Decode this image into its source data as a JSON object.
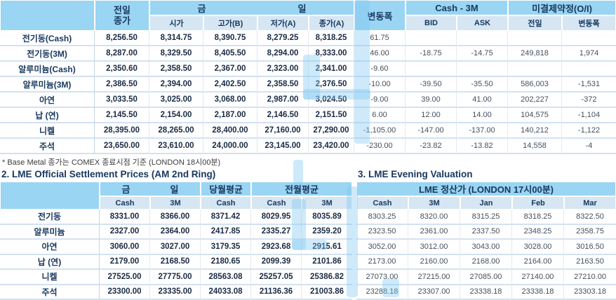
{
  "colors": {
    "header_blue": "#9AD5F3",
    "subheader_blue": "#D6E6F2",
    "navy_text": "#17375E"
  },
  "top_table": {
    "col_prev": {
      "line1": "전일",
      "line2": "종가"
    },
    "col_today": {
      "left": "금",
      "right": "일"
    },
    "sub_today": [
      "시가",
      "고가(B)",
      "저가(A)",
      "종가(A)"
    ],
    "col_change": "변동폭",
    "col_cash3m": "Cash - 3M",
    "sub_cash3m": [
      "BID",
      "ASK"
    ],
    "col_oi": "미결제약정(O/I)",
    "sub_oi": [
      "전일",
      "변동폭"
    ],
    "rows": [
      [
        "전기동(Cash)",
        "8,256.50",
        "8,314.75",
        "8,390.75",
        "8,279.25",
        "8,318.25",
        "61.75",
        "",
        "",
        "",
        ""
      ],
      [
        "전기동(3M)",
        "8,287.00",
        "8,329.50",
        "8,405.50",
        "8,294.00",
        "8,333.00",
        "46.00",
        "-18.75",
        "-14.75",
        "249,818",
        "1,974"
      ],
      [
        "알루미늄(Cash)",
        "2,350.60",
        "2,358.50",
        "2,367.00",
        "2,323.00",
        "2,341.00",
        "-9.60",
        "",
        "",
        "",
        ""
      ],
      [
        "알루미늄(3M)",
        "2,386.50",
        "2,394.00",
        "2,402.50",
        "2,358.50",
        "2,376.50",
        "-10.00",
        "-39.50",
        "-35.50",
        "586,003",
        "-1,531"
      ],
      [
        "아연",
        "3,033.50",
        "3,025.00",
        "3,068.00",
        "2,987.00",
        "3,024.50",
        "-9.00",
        "39.00",
        "41.00",
        "202,227",
        "-372"
      ],
      [
        "납 (연)",
        "2,145.50",
        "2,154.00",
        "2,187.00",
        "2,146.50",
        "2,151.50",
        "6.00",
        "12.00",
        "14.00",
        "104,575",
        "-1,104"
      ],
      [
        "니켈",
        "28,395.00",
        "28,265.00",
        "28,400.00",
        "27,160.00",
        "27,290.00",
        "-1,105.00",
        "-147.00",
        "-137.00",
        "140,212",
        "-1,122"
      ],
      [
        "주석",
        "23,650.00",
        "23,610.00",
        "24,000.00",
        "23,145.00",
        "23,420.00",
        "-230.00",
        "-23.82",
        "-13.82",
        "14,558",
        "-4"
      ]
    ],
    "footnote": "* Base Metal 종가는 COMEX 종료시점 기준 (LONDON 18시00분)"
  },
  "settlement_table": {
    "title": "2. LME Official Settlement Prices (AM 2nd Ring)",
    "group_today": {
      "left": "금",
      "right": "일"
    },
    "group_month_avg": "당월평균",
    "group_prev_month_avg": "전월평균",
    "sub": [
      "Cash",
      "3M",
      "Cash",
      "Cash",
      "3M"
    ],
    "rows": [
      [
        "전기동",
        "8331.00",
        "8366.00",
        "8371.42",
        "8029.95",
        "8035.89"
      ],
      [
        "알루미늄",
        "2327.00",
        "2364.00",
        "2417.85",
        "2335.27",
        "2359.20"
      ],
      [
        "아연",
        "3060.00",
        "3027.00",
        "3179.35",
        "2923.68",
        "2915.61"
      ],
      [
        "납 (연)",
        "2179.00",
        "2168.50",
        "2180.65",
        "2099.39",
        "2101.86"
      ],
      [
        "니켈",
        "27525.00",
        "27775.00",
        "28563.08",
        "25257.05",
        "25386.82"
      ],
      [
        "주석",
        "23300.00",
        "23335.00",
        "24033.08",
        "21136.36",
        "21003.86"
      ]
    ]
  },
  "evening_table": {
    "title": "3. LME Evening Valuation",
    "group": "LME 정산가 (LONDON 17시00분)",
    "sub": [
      "Cash",
      "3M",
      "Jan",
      "Feb",
      "Mar"
    ],
    "rows": [
      [
        "8303.25",
        "8320.00",
        "8315.25",
        "8318.25",
        "8322.50"
      ],
      [
        "2323.50",
        "2361.00",
        "2337.50",
        "2348.25",
        "2358.75"
      ],
      [
        "3052.00",
        "3012.00",
        "3043.00",
        "3028.00",
        "3016.50"
      ],
      [
        "2173.00",
        "2160.00",
        "2168.00",
        "2164.00",
        "2163.50"
      ],
      [
        "27073.00",
        "27215.00",
        "27085.00",
        "27140.00",
        "27210.00"
      ],
      [
        "23288.18",
        "23307.00",
        "23338.18",
        "23338.18",
        "23303.18"
      ]
    ]
  }
}
